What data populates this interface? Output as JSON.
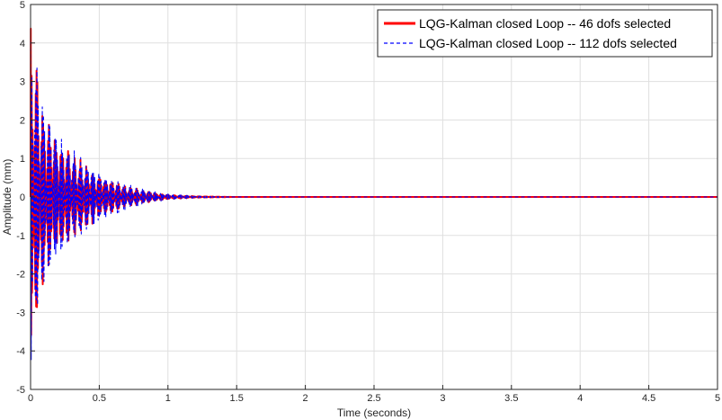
{
  "chart_data": {
    "type": "line",
    "xlabel": "Time (seconds)",
    "ylabel": "Amplitude (mm)",
    "xlim": [
      0,
      5
    ],
    "ylim": [
      -5,
      5
    ],
    "xticks": [
      0,
      0.5,
      1,
      1.5,
      2,
      2.5,
      3,
      3.5,
      4,
      4.5,
      5
    ],
    "yticks": [
      -5,
      -4,
      -3,
      -2,
      -1,
      0,
      1,
      2,
      3,
      4,
      5
    ],
    "grid": true,
    "legend_position": "top-right",
    "series": [
      {
        "name": "LQG-Kalman closed Loop -- 46 dofs selected",
        "color": "#ff0000",
        "style": "solid",
        "envelope": {
          "t": [
            0,
            0.02,
            0.05,
            0.1,
            0.2,
            0.3,
            0.4,
            0.5,
            0.6,
            0.7,
            0.8,
            0.9,
            1.0,
            1.2,
            1.5,
            5
          ],
          "amp": [
            5.0,
            4.6,
            3.5,
            2.3,
            1.6,
            1.2,
            0.9,
            0.6,
            0.45,
            0.3,
            0.2,
            0.12,
            0.06,
            0.02,
            0.0,
            0.0
          ]
        }
      },
      {
        "name": "LQG-Kalman closed Loop -- 112 dofs selected",
        "color": "#0000ff",
        "style": "dashed",
        "envelope": {
          "t": [
            0,
            0.02,
            0.05,
            0.1,
            0.15,
            0.2,
            0.3,
            0.4,
            0.5,
            0.6,
            0.7,
            0.8,
            0.9,
            1.0,
            1.2,
            1.5,
            5
          ],
          "amp": [
            4.4,
            4.7,
            3.8,
            2.6,
            2.4,
            1.7,
            1.3,
            1.0,
            0.7,
            0.5,
            0.38,
            0.25,
            0.15,
            0.08,
            0.03,
            0.0,
            0.0
          ]
        }
      }
    ]
  }
}
